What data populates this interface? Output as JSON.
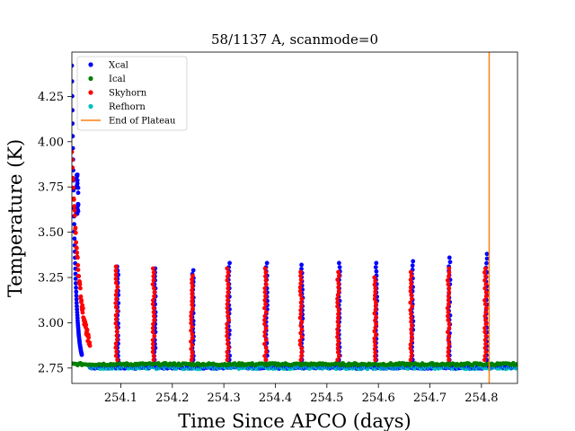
{
  "chart_data": {
    "type": "scatter",
    "title": "58/1137 A, scanmode=0",
    "xlabel": "Time Since APCO (days)",
    "ylabel": "Temperature (K)",
    "xlim": [
      254.005,
      254.87
    ],
    "ylim": [
      2.665,
      4.495
    ],
    "xticks": [
      254.1,
      254.2,
      254.3,
      254.4,
      254.5,
      254.6,
      254.7,
      254.8
    ],
    "xtick_labels": [
      "254.1",
      "254.2",
      "254.3",
      "254.4",
      "254.5",
      "254.6",
      "254.7",
      "254.8"
    ],
    "yticks": [
      2.75,
      3.0,
      3.25,
      3.5,
      3.75,
      4.0,
      4.25
    ],
    "ytick_labels": [
      "2.75",
      "3.00",
      "3.25",
      "3.50",
      "3.75",
      "4.00",
      "4.25"
    ],
    "grid": false,
    "legend_position": "top-left",
    "series": [
      {
        "name": "Xcal",
        "color": "#0000ff"
      },
      {
        "name": "Ical",
        "color": "#008000"
      },
      {
        "name": "Skyhorn",
        "color": "#ff0000"
      },
      {
        "name": "Refhorn",
        "color": "#00bfbf"
      }
    ],
    "plateau": {
      "name": "End of Plateau",
      "x": 254.815,
      "color": "#ff7f0e"
    },
    "baseline_temperature": 2.755,
    "ical_temperature": 2.765,
    "initial_cooldown": {
      "x_start": 254.005,
      "x_end": 254.04,
      "xcal_peak": 4.42,
      "skyhorn_peak": 3.93
    },
    "spikes": [
      {
        "x": 254.094,
        "xcal_peak": 3.31,
        "skyhorn_peak": 3.31
      },
      {
        "x": 254.166,
        "xcal_peak": 3.3,
        "skyhorn_peak": 3.3
      },
      {
        "x": 254.24,
        "xcal_peak": 3.29,
        "skyhorn_peak": 3.26
      },
      {
        "x": 254.31,
        "xcal_peak": 3.33,
        "skyhorn_peak": 3.3
      },
      {
        "x": 254.383,
        "xcal_peak": 3.33,
        "skyhorn_peak": 3.3
      },
      {
        "x": 254.452,
        "xcal_peak": 3.32,
        "skyhorn_peak": 3.28
      },
      {
        "x": 254.524,
        "xcal_peak": 3.33,
        "skyhorn_peak": 3.28
      },
      {
        "x": 254.596,
        "xcal_peak": 3.33,
        "skyhorn_peak": 3.25
      },
      {
        "x": 254.666,
        "xcal_peak": 3.34,
        "skyhorn_peak": 3.28
      },
      {
        "x": 254.738,
        "xcal_peak": 3.36,
        "skyhorn_peak": 3.3
      },
      {
        "x": 254.81,
        "xcal_peak": 3.38,
        "skyhorn_peak": 3.3
      }
    ]
  }
}
